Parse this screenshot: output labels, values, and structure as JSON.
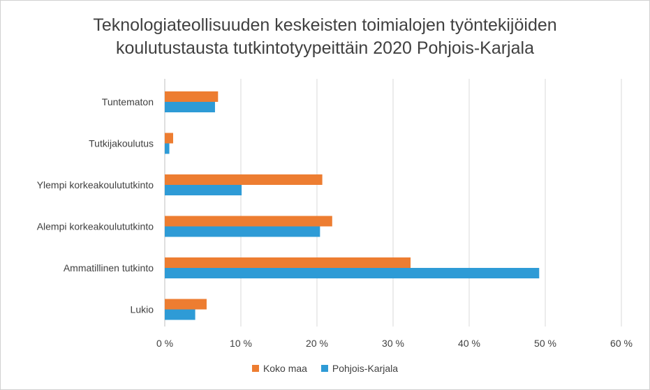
{
  "chart_data": {
    "type": "bar",
    "orientation": "horizontal",
    "title": "Teknologiateollisuuden keskeisten toimialojen työntekijöiden koulutustausta tutkintotyypeittäin 2020 Pohjois-Karjala",
    "title_lines": [
      "Teknologiateollisuuden keskeisten toimialojen työntekijöiden",
      "koulutustausta tutkintotyypeittäin 2020 Pohjois-Karjala"
    ],
    "categories": [
      "Tuntematon",
      "Tutkijakoulutus",
      "Ylempi korkeakoulututkinto",
      "Alempi korkeakoulututkinto",
      "Ammatillinen tutkinto",
      "Lukio"
    ],
    "series": [
      {
        "name": "Koko maa",
        "color": "#ED7D31",
        "values": [
          7.0,
          1.1,
          20.7,
          22.0,
          32.3,
          5.5
        ]
      },
      {
        "name": "Pohjois-Karjala",
        "color": "#2E9BD6",
        "values": [
          6.6,
          0.6,
          10.1,
          20.4,
          49.2,
          4.0
        ]
      }
    ],
    "xlim": [
      0,
      60
    ],
    "xticks": [
      0,
      10,
      20,
      30,
      40,
      50,
      60
    ],
    "xtick_labels": [
      "0 %",
      "10 %",
      "20 %",
      "30 %",
      "40 %",
      "50 %",
      "60 %"
    ],
    "grid": true,
    "legend_position": "bottom"
  }
}
